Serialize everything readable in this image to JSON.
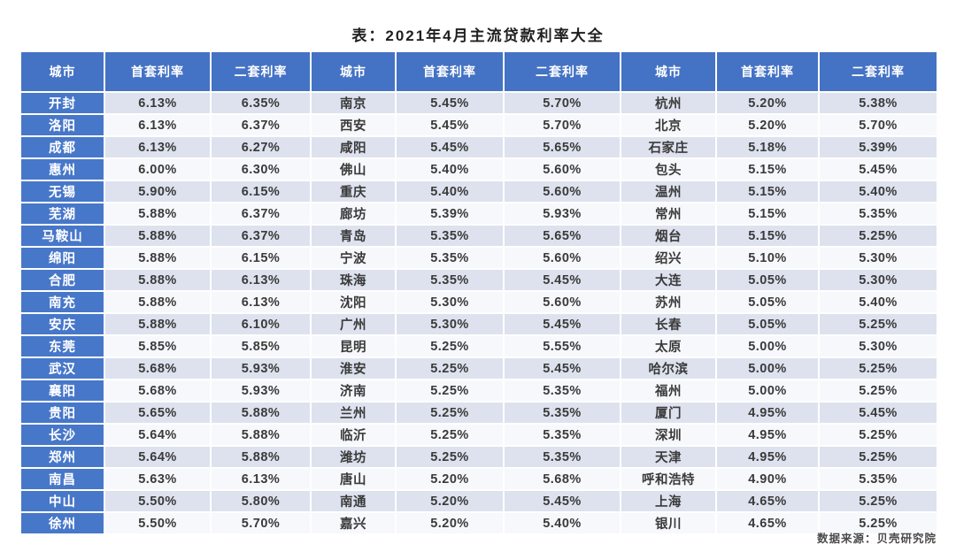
{
  "title": "表：2021年4月主流贷款利率大全",
  "source": "数据来源：贝壳研究院",
  "colors": {
    "header_bg": "#4472c4",
    "city_column_bg": "#4777c9",
    "row_alt_bg": "#dde2ee",
    "row_base_bg": "#f7f8fb",
    "header_text": "#ffffff",
    "data_text": "#3a3a3a"
  },
  "chart_data": {
    "type": "table",
    "title": "表：2021年4月主流贷款利率大全",
    "source": "数据来源：贝壳研究院",
    "columns": [
      "城市",
      "首套利率",
      "二套利率",
      "城市",
      "首套利率",
      "二套利率",
      "城市",
      "首套利率",
      "二套利率"
    ],
    "rows": [
      [
        "开封",
        "6.13%",
        "6.35%",
        "南京",
        "5.45%",
        "5.70%",
        "杭州",
        "5.20%",
        "5.38%"
      ],
      [
        "洛阳",
        "6.13%",
        "6.37%",
        "西安",
        "5.45%",
        "5.70%",
        "北京",
        "5.20%",
        "5.70%"
      ],
      [
        "成都",
        "6.13%",
        "6.27%",
        "咸阳",
        "5.45%",
        "5.65%",
        "石家庄",
        "5.18%",
        "5.39%"
      ],
      [
        "惠州",
        "6.00%",
        "6.30%",
        "佛山",
        "5.40%",
        "5.60%",
        "包头",
        "5.15%",
        "5.45%"
      ],
      [
        "无锡",
        "5.90%",
        "6.15%",
        "重庆",
        "5.40%",
        "5.60%",
        "温州",
        "5.15%",
        "5.40%"
      ],
      [
        "芜湖",
        "5.88%",
        "6.37%",
        "廊坊",
        "5.39%",
        "5.93%",
        "常州",
        "5.15%",
        "5.35%"
      ],
      [
        "马鞍山",
        "5.88%",
        "6.37%",
        "青岛",
        "5.35%",
        "5.65%",
        "烟台",
        "5.15%",
        "5.25%"
      ],
      [
        "绵阳",
        "5.88%",
        "6.15%",
        "宁波",
        "5.35%",
        "5.60%",
        "绍兴",
        "5.10%",
        "5.30%"
      ],
      [
        "合肥",
        "5.88%",
        "6.13%",
        "珠海",
        "5.35%",
        "5.45%",
        "大连",
        "5.05%",
        "5.30%"
      ],
      [
        "南充",
        "5.88%",
        "6.13%",
        "沈阳",
        "5.30%",
        "5.60%",
        "苏州",
        "5.05%",
        "5.40%"
      ],
      [
        "安庆",
        "5.88%",
        "6.10%",
        "广州",
        "5.30%",
        "5.45%",
        "长春",
        "5.05%",
        "5.25%"
      ],
      [
        "东莞",
        "5.85%",
        "5.85%",
        "昆明",
        "5.25%",
        "5.55%",
        "太原",
        "5.00%",
        "5.30%"
      ],
      [
        "武汉",
        "5.68%",
        "5.93%",
        "淮安",
        "5.25%",
        "5.45%",
        "哈尔滨",
        "5.00%",
        "5.25%"
      ],
      [
        "襄阳",
        "5.68%",
        "5.93%",
        "济南",
        "5.25%",
        "5.35%",
        "福州",
        "5.00%",
        "5.25%"
      ],
      [
        "贵阳",
        "5.65%",
        "5.88%",
        "兰州",
        "5.25%",
        "5.35%",
        "厦门",
        "4.95%",
        "5.45%"
      ],
      [
        "长沙",
        "5.64%",
        "5.88%",
        "临沂",
        "5.25%",
        "5.35%",
        "深圳",
        "4.95%",
        "5.25%"
      ],
      [
        "郑州",
        "5.64%",
        "5.88%",
        "潍坊",
        "5.25%",
        "5.35%",
        "天津",
        "4.95%",
        "5.25%"
      ],
      [
        "南昌",
        "5.63%",
        "6.13%",
        "唐山",
        "5.20%",
        "5.68%",
        "呼和浩特",
        "4.90%",
        "5.35%"
      ],
      [
        "中山",
        "5.50%",
        "5.80%",
        "南通",
        "5.20%",
        "5.45%",
        "上海",
        "4.65%",
        "5.25%"
      ],
      [
        "徐州",
        "5.50%",
        "5.70%",
        "嘉兴",
        "5.20%",
        "5.40%",
        "银川",
        "4.65%",
        "5.25%"
      ]
    ]
  }
}
